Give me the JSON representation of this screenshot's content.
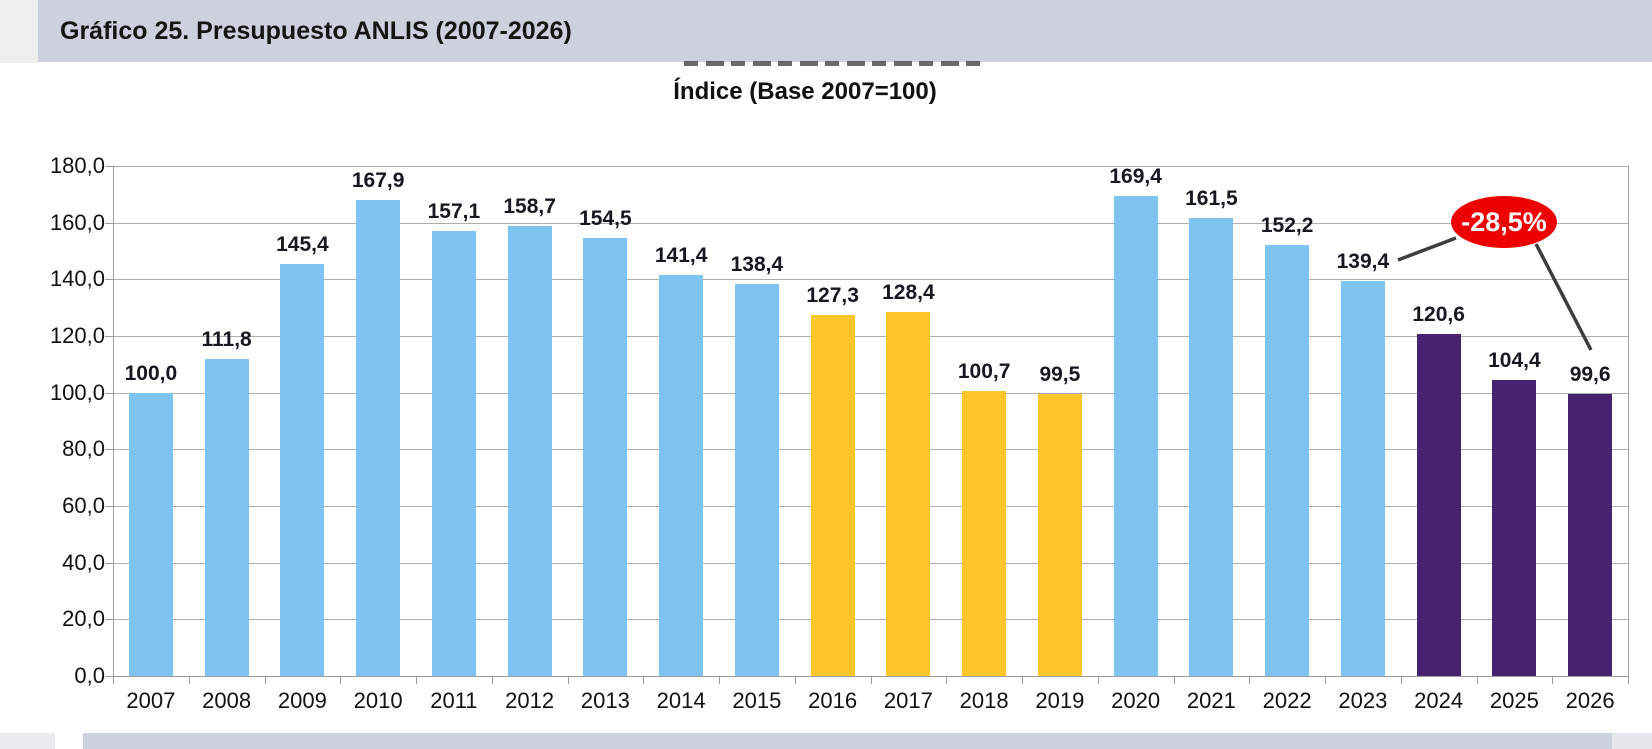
{
  "header": {
    "title": "Gráfico 25. Presupuesto ANLIS (2007-2026)"
  },
  "chart_title": "Índice (Base 2007=100)",
  "annotation": {
    "text": "-28,5%",
    "fill": "#ee0000",
    "text_color": "#ffffff"
  },
  "colors": {
    "blue": "#7ec3f1",
    "yellow": "#fdc72b",
    "purple": "#46226f",
    "header_band": "#cdd1de",
    "grid": "#aeaeae"
  },
  "y_axis": {
    "ticks": [
      "180,0",
      "160,0",
      "140,0",
      "120,0",
      "100,0",
      "80,0",
      "60,0",
      "40,0",
      "20,0",
      "0,0"
    ],
    "min": 0,
    "max": 180,
    "step": 20
  },
  "chart_data": {
    "type": "bar",
    "title": "Índice (Base 2007=100)",
    "categories": [
      "2007",
      "2008",
      "2009",
      "2010",
      "2011",
      "2012",
      "2013",
      "2014",
      "2015",
      "2016",
      "2017",
      "2018",
      "2019",
      "2020",
      "2021",
      "2022",
      "2023",
      "2024",
      "2025",
      "2026"
    ],
    "values": [
      100.0,
      111.8,
      145.4,
      167.9,
      157.1,
      158.7,
      154.5,
      141.4,
      138.4,
      127.3,
      128.4,
      100.7,
      99.5,
      169.4,
      161.5,
      152.2,
      139.4,
      120.6,
      104.4,
      99.6
    ],
    "labels": [
      "100,0",
      "111,8",
      "145,4",
      "167,9",
      "157,1",
      "158,7",
      "154,5",
      "141,4",
      "138,4",
      "127,3",
      "128,4",
      "100,7",
      "99,5",
      "169,4",
      "161,5",
      "152,2",
      "139,4",
      "120,6",
      "104,4",
      "99,6"
    ],
    "bar_colors": [
      "blue",
      "blue",
      "blue",
      "blue",
      "blue",
      "blue",
      "blue",
      "blue",
      "blue",
      "yellow",
      "yellow",
      "yellow",
      "yellow",
      "blue",
      "blue",
      "blue",
      "blue",
      "purple",
      "purple",
      "purple"
    ],
    "xlabel": "",
    "ylabel": "",
    "ylim": [
      0,
      180
    ],
    "grid": true,
    "legend": false,
    "annotation": {
      "text": "-28,5%",
      "connects": [
        "2023",
        "2026"
      ]
    }
  }
}
